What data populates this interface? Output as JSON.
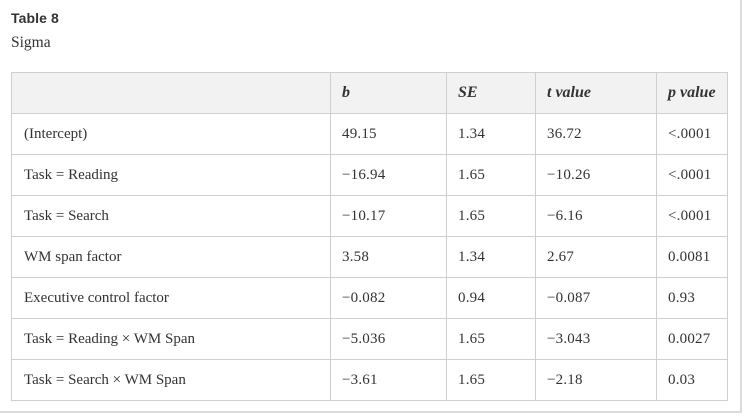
{
  "caption": {
    "label": "Table 8",
    "title": "Sigma"
  },
  "table": {
    "columns": [
      "",
      "b",
      "SE",
      "t value",
      "p value"
    ],
    "rows": [
      [
        "(Intercept)",
        "49.15",
        "1.34",
        "36.72",
        "<.0001"
      ],
      [
        "Task = Reading",
        "−16.94",
        "1.65",
        "−10.26",
        "<.0001"
      ],
      [
        "Task = Search",
        "−10.17",
        "1.65",
        "−6.16",
        "<.0001"
      ],
      [
        "WM span factor",
        "3.58",
        "1.34",
        "2.67",
        "0.0081"
      ],
      [
        "Executive control factor",
        "−0.082",
        "0.94",
        "−0.087",
        "0.93"
      ],
      [
        "Task = Reading × WM Span",
        "−5.036",
        "1.65",
        "−3.043",
        "0.0027"
      ],
      [
        "Task = Search × WM Span",
        "−3.61",
        "1.65",
        "−2.18",
        "0.03"
      ]
    ]
  }
}
